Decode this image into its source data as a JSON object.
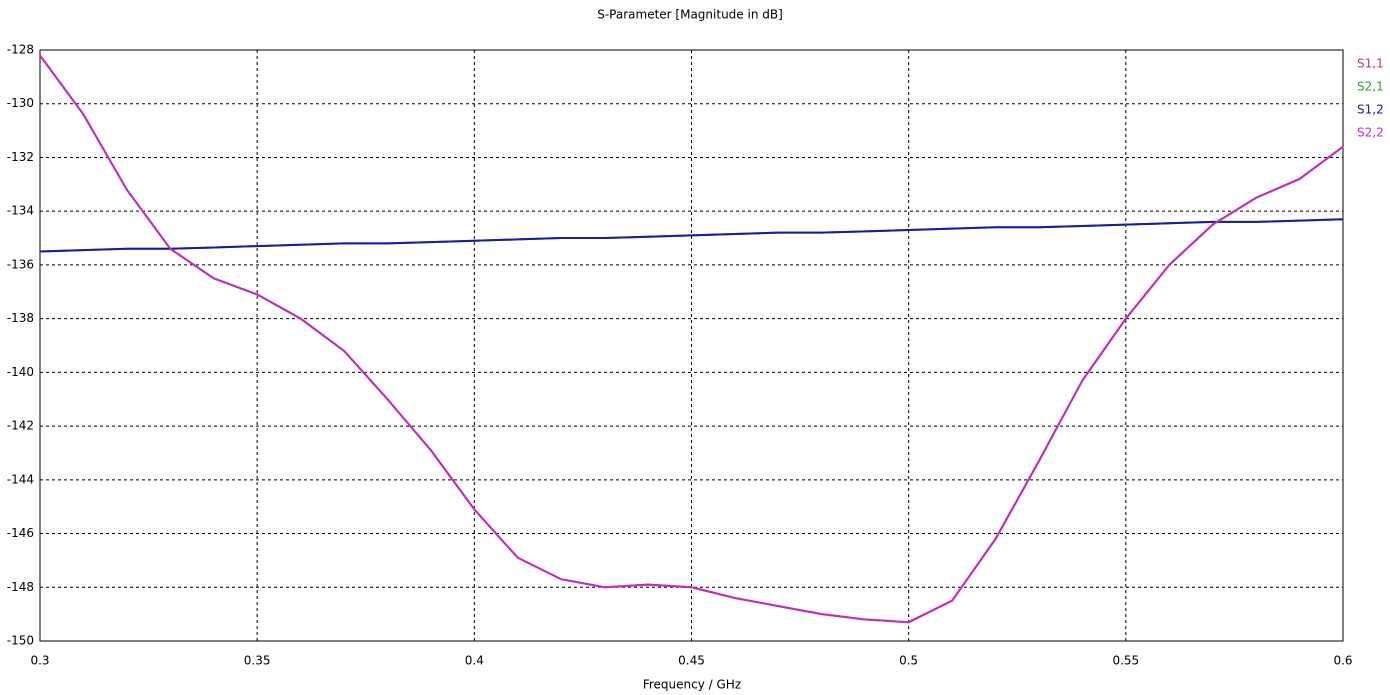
{
  "chart_data": {
    "type": "line",
    "title": "S-Parameter [Magnitude in dB]",
    "x_label": "Frequency / GHz",
    "x": [
      0.3,
      0.31,
      0.32,
      0.33,
      0.34,
      0.35,
      0.36,
      0.37,
      0.38,
      0.39,
      0.4,
      0.41,
      0.42,
      0.43,
      0.44,
      0.45,
      0.46,
      0.47,
      0.48,
      0.49,
      0.5,
      0.51,
      0.52,
      0.53,
      0.54,
      0.55,
      0.56,
      0.57,
      0.58,
      0.59,
      0.6
    ],
    "series": [
      {
        "name": "S1,1",
        "color": "#cc3366",
        "values": [
          -128.2,
          -130.4,
          -133.2,
          -135.4,
          -136.5,
          -137.1,
          -138.0,
          -139.2,
          -141.0,
          -142.9,
          -145.1,
          -146.9,
          -147.7,
          -148.0,
          -147.9,
          -148.0,
          -148.4,
          -148.7,
          -149.0,
          -149.2,
          -149.3,
          -148.5,
          -146.2,
          -143.3,
          -140.3,
          -138.0,
          -136.0,
          -134.5,
          -133.5,
          -132.8,
          -131.6
        ]
      },
      {
        "name": "S2,1",
        "color": "#2e9e3e",
        "values": [
          -135.5,
          -135.45,
          -135.4,
          -135.4,
          -135.35,
          -135.3,
          -135.25,
          -135.2,
          -135.2,
          -135.15,
          -135.1,
          -135.05,
          -135.0,
          -135.0,
          -134.95,
          -134.9,
          -134.85,
          -134.8,
          -134.8,
          -134.75,
          -134.7,
          -134.65,
          -134.6,
          -134.6,
          -134.55,
          -134.5,
          -134.45,
          -134.4,
          -134.4,
          -134.35,
          -134.3
        ]
      },
      {
        "name": "S1,2",
        "color": "#1a1aa6",
        "values": [
          -135.5,
          -135.45,
          -135.4,
          -135.4,
          -135.35,
          -135.3,
          -135.25,
          -135.2,
          -135.2,
          -135.15,
          -135.1,
          -135.05,
          -135.0,
          -135.0,
          -134.95,
          -134.9,
          -134.85,
          -134.8,
          -134.8,
          -134.75,
          -134.7,
          -134.65,
          -134.6,
          -134.6,
          -134.55,
          -134.5,
          -134.45,
          -134.4,
          -134.4,
          -134.35,
          -134.3
        ]
      },
      {
        "name": "S2,2",
        "color": "#c030c0",
        "values": [
          -128.2,
          -130.4,
          -133.2,
          -135.4,
          -136.5,
          -137.1,
          -138.0,
          -139.2,
          -141.0,
          -142.9,
          -145.1,
          -146.9,
          -147.7,
          -148.0,
          -147.9,
          -148.0,
          -148.4,
          -148.7,
          -149.0,
          -149.2,
          -149.3,
          -148.5,
          -146.2,
          -143.3,
          -140.3,
          -138.0,
          -136.0,
          -134.5,
          -133.5,
          -132.8,
          -131.6
        ]
      }
    ],
    "xlim": [
      0.3,
      0.6
    ],
    "xticks": [
      0.3,
      0.35,
      0.4,
      0.45,
      0.5,
      0.55,
      0.6
    ],
    "ylim": [
      -150,
      -128
    ],
    "yticks": [
      -128,
      -130,
      -132,
      -134,
      -136,
      -138,
      -140,
      -142,
      -144,
      -146,
      -148,
      -150
    ],
    "grid": true,
    "legend": "right"
  }
}
